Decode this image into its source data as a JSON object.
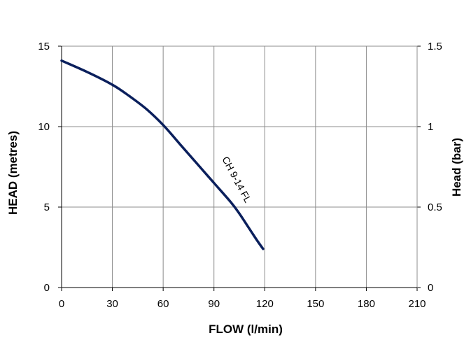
{
  "chart_data": {
    "type": "line",
    "xlabel": "FLOW (l/min)",
    "ylabel_left": "HEAD (metres)",
    "ylabel_right": "Head (bar)",
    "xlim": [
      0,
      210
    ],
    "ylim_left": [
      0,
      15
    ],
    "ylim_right": [
      0,
      1.5
    ],
    "x_ticks": [
      "0",
      "30",
      "60",
      "90",
      "120",
      "150",
      "180",
      "210"
    ],
    "y_ticks_left": [
      "0",
      "5",
      "10",
      "15"
    ],
    "y_ticks_right": [
      "0",
      "0.5",
      "1",
      "1.5"
    ],
    "grid": true,
    "series_color": "#0a1f5c",
    "series": [
      {
        "name": "CH 9-14 FL",
        "x": [
          0,
          15,
          30,
          40,
          50,
          60,
          70,
          80,
          90,
          100,
          105,
          110,
          115,
          119
        ],
        "y": [
          14.1,
          13.4,
          12.6,
          11.9,
          11.1,
          10.1,
          8.9,
          7.7,
          6.5,
          5.3,
          4.6,
          3.8,
          3.0,
          2.4
        ]
      }
    ]
  }
}
